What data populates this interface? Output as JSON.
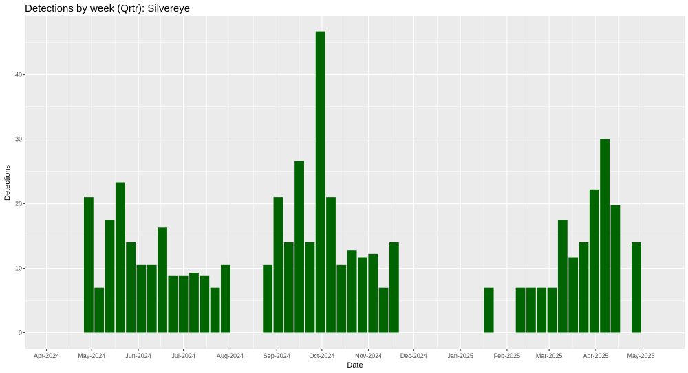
{
  "chart_data": {
    "type": "bar",
    "title": "Detections by week (Qrtr): Silvereye",
    "xlabel": "Date",
    "ylabel": "Detections",
    "x_range": [
      "2024-03-18",
      "2025-05-30"
    ],
    "ylim": [
      -2.5,
      49
    ],
    "y_ticks": [
      0,
      10,
      20,
      30,
      40
    ],
    "x_ticks": [
      {
        "date": "2024-04-01",
        "label": "Apr-2024"
      },
      {
        "date": "2024-05-01",
        "label": "May-2024"
      },
      {
        "date": "2024-06-01",
        "label": "Jun-2024"
      },
      {
        "date": "2024-07-01",
        "label": "Jul-2024"
      },
      {
        "date": "2024-08-01",
        "label": "Aug-2024"
      },
      {
        "date": "2024-09-01",
        "label": "Sep-2024"
      },
      {
        "date": "2024-10-01",
        "label": "Oct-2024"
      },
      {
        "date": "2024-11-01",
        "label": "Nov-2024"
      },
      {
        "date": "2024-12-01",
        "label": "Dec-2024"
      },
      {
        "date": "2025-01-01",
        "label": "Jan-2025"
      },
      {
        "date": "2025-02-01",
        "label": "Feb-2025"
      },
      {
        "date": "2025-03-01",
        "label": "Mar-2025"
      },
      {
        "date": "2025-04-01",
        "label": "Apr-2025"
      },
      {
        "date": "2025-05-01",
        "label": "May-2025"
      }
    ],
    "bar_color": "#006400",
    "panel_color": "#ebebeb",
    "grid": true,
    "bars": [
      {
        "week": "2024-04-29",
        "value": 21
      },
      {
        "week": "2024-05-06",
        "value": 7
      },
      {
        "week": "2024-05-13",
        "value": 17.5
      },
      {
        "week": "2024-05-20",
        "value": 23.3
      },
      {
        "week": "2024-05-27",
        "value": 14
      },
      {
        "week": "2024-06-03",
        "value": 10.5
      },
      {
        "week": "2024-06-10",
        "value": 10.5
      },
      {
        "week": "2024-06-17",
        "value": 16.3
      },
      {
        "week": "2024-06-24",
        "value": 8.8
      },
      {
        "week": "2024-07-01",
        "value": 8.8
      },
      {
        "week": "2024-07-08",
        "value": 9.3
      },
      {
        "week": "2024-07-15",
        "value": 8.8
      },
      {
        "week": "2024-07-22",
        "value": 7
      },
      {
        "week": "2024-07-29",
        "value": 10.5
      },
      {
        "week": "2024-08-26",
        "value": 10.5
      },
      {
        "week": "2024-09-02",
        "value": 21
      },
      {
        "week": "2024-09-09",
        "value": 14
      },
      {
        "week": "2024-09-16",
        "value": 26.6
      },
      {
        "week": "2024-09-23",
        "value": 14
      },
      {
        "week": "2024-09-30",
        "value": 46.7
      },
      {
        "week": "2024-10-07",
        "value": 21
      },
      {
        "week": "2024-10-14",
        "value": 10.5
      },
      {
        "week": "2024-10-21",
        "value": 12.8
      },
      {
        "week": "2024-10-28",
        "value": 11.7
      },
      {
        "week": "2024-11-04",
        "value": 12.2
      },
      {
        "week": "2024-11-11",
        "value": 7
      },
      {
        "week": "2024-11-18",
        "value": 14
      },
      {
        "week": "2025-01-20",
        "value": 7
      },
      {
        "week": "2025-02-10",
        "value": 7
      },
      {
        "week": "2025-02-17",
        "value": 7
      },
      {
        "week": "2025-02-24",
        "value": 7
      },
      {
        "week": "2025-03-03",
        "value": 7
      },
      {
        "week": "2025-03-10",
        "value": 17.5
      },
      {
        "week": "2025-03-17",
        "value": 11.7
      },
      {
        "week": "2025-03-24",
        "value": 14
      },
      {
        "week": "2025-03-31",
        "value": 22.2
      },
      {
        "week": "2025-04-07",
        "value": 30
      },
      {
        "week": "2025-04-14",
        "value": 19.8
      },
      {
        "week": "2025-04-28",
        "value": 14
      }
    ]
  }
}
